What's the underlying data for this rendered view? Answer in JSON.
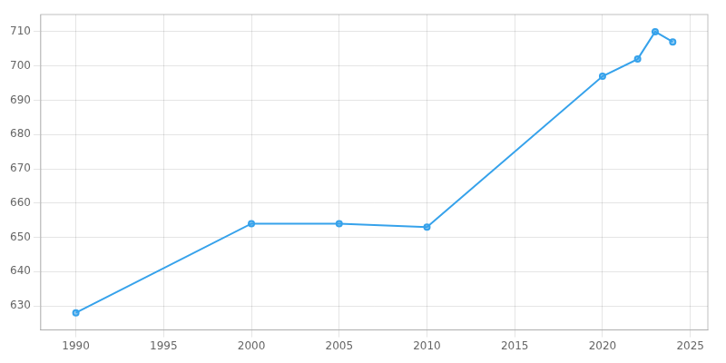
{
  "chart_data": {
    "type": "line",
    "x": [
      1990,
      2000,
      2005,
      2010,
      2020,
      2022,
      2023,
      2024
    ],
    "values": [
      628,
      654,
      654,
      653,
      697,
      702,
      710,
      707
    ],
    "xlim": [
      1988,
      2026
    ],
    "ylim": [
      623,
      715
    ],
    "xticks": [
      1990,
      1995,
      2000,
      2005,
      2010,
      2015,
      2020,
      2025
    ],
    "yticks": [
      630,
      640,
      650,
      660,
      670,
      680,
      690,
      700,
      710
    ],
    "grid": true,
    "marker": "circle"
  }
}
